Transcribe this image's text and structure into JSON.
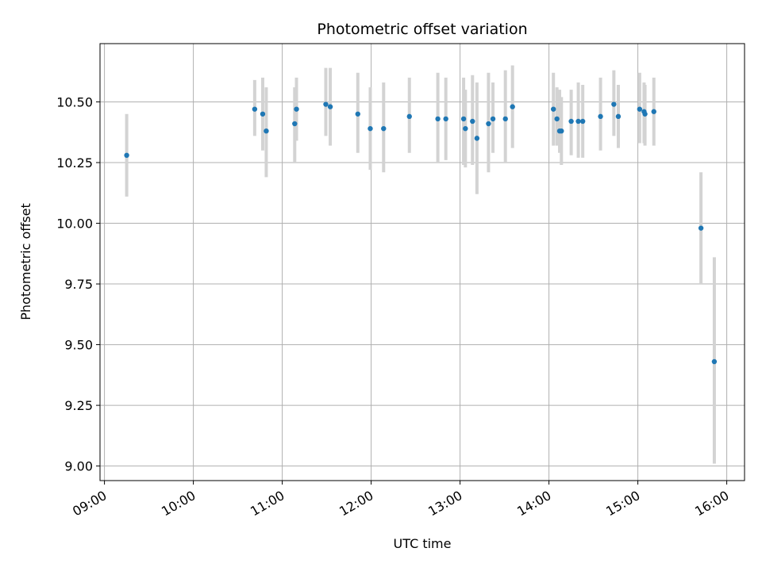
{
  "chart_data": {
    "type": "scatter",
    "title": "Photometric offset variation",
    "xlabel": "UTC time",
    "ylabel": "Photometric offset",
    "xlim": [
      8.95,
      16.2
    ],
    "ylim": [
      8.94,
      10.74
    ],
    "grid": true,
    "x_ticks": [
      {
        "value": 9,
        "label": "09:00"
      },
      {
        "value": 10,
        "label": "10:00"
      },
      {
        "value": 11,
        "label": "11:00"
      },
      {
        "value": 12,
        "label": "12:00"
      },
      {
        "value": 13,
        "label": "13:00"
      },
      {
        "value": 14,
        "label": "14:00"
      },
      {
        "value": 15,
        "label": "15:00"
      },
      {
        "value": 16,
        "label": "16:00"
      }
    ],
    "y_ticks": [
      {
        "value": 9.0,
        "label": "9.00"
      },
      {
        "value": 9.25,
        "label": "9.25"
      },
      {
        "value": 9.5,
        "label": "9.50"
      },
      {
        "value": 9.75,
        "label": "9.75"
      },
      {
        "value": 10.0,
        "label": "10.00"
      },
      {
        "value": 10.25,
        "label": "10.25"
      },
      {
        "value": 10.5,
        "label": "10.50"
      }
    ],
    "series": [
      {
        "name": "offset",
        "color": "#1f77b4",
        "errorbar_color": "#d3d3d3",
        "points": [
          {
            "x": 9.25,
            "y": 10.28,
            "lo": 10.11,
            "hi": 10.45
          },
          {
            "x": 10.69,
            "y": 10.47,
            "lo": 10.36,
            "hi": 10.59
          },
          {
            "x": 10.78,
            "y": 10.45,
            "lo": 10.3,
            "hi": 10.6
          },
          {
            "x": 10.82,
            "y": 10.38,
            "lo": 10.19,
            "hi": 10.56
          },
          {
            "x": 11.14,
            "y": 10.41,
            "lo": 10.25,
            "hi": 10.56
          },
          {
            "x": 11.16,
            "y": 10.47,
            "lo": 10.34,
            "hi": 10.6
          },
          {
            "x": 11.49,
            "y": 10.49,
            "lo": 10.36,
            "hi": 10.64
          },
          {
            "x": 11.54,
            "y": 10.48,
            "lo": 10.32,
            "hi": 10.64
          },
          {
            "x": 11.85,
            "y": 10.45,
            "lo": 10.29,
            "hi": 10.62
          },
          {
            "x": 11.99,
            "y": 10.39,
            "lo": 10.22,
            "hi": 10.56
          },
          {
            "x": 12.14,
            "y": 10.39,
            "lo": 10.21,
            "hi": 10.58
          },
          {
            "x": 12.43,
            "y": 10.44,
            "lo": 10.29,
            "hi": 10.6
          },
          {
            "x": 12.75,
            "y": 10.43,
            "lo": 10.25,
            "hi": 10.62
          },
          {
            "x": 12.84,
            "y": 10.43,
            "lo": 10.26,
            "hi": 10.6
          },
          {
            "x": 13.04,
            "y": 10.43,
            "lo": 10.24,
            "hi": 10.6
          },
          {
            "x": 13.06,
            "y": 10.39,
            "lo": 10.23,
            "hi": 10.55
          },
          {
            "x": 13.14,
            "y": 10.42,
            "lo": 10.24,
            "hi": 10.61
          },
          {
            "x": 13.19,
            "y": 10.35,
            "lo": 10.12,
            "hi": 10.58
          },
          {
            "x": 13.32,
            "y": 10.41,
            "lo": 10.21,
            "hi": 10.62
          },
          {
            "x": 13.37,
            "y": 10.43,
            "lo": 10.29,
            "hi": 10.58
          },
          {
            "x": 13.51,
            "y": 10.43,
            "lo": 10.25,
            "hi": 10.63
          },
          {
            "x": 13.59,
            "y": 10.48,
            "lo": 10.31,
            "hi": 10.65
          },
          {
            "x": 14.05,
            "y": 10.47,
            "lo": 10.32,
            "hi": 10.62
          },
          {
            "x": 14.09,
            "y": 10.43,
            "lo": 10.32,
            "hi": 10.56
          },
          {
            "x": 14.12,
            "y": 10.38,
            "lo": 10.29,
            "hi": 10.55
          },
          {
            "x": 14.14,
            "y": 10.38,
            "lo": 10.24,
            "hi": 10.52
          },
          {
            "x": 14.25,
            "y": 10.42,
            "lo": 10.28,
            "hi": 10.55
          },
          {
            "x": 14.33,
            "y": 10.42,
            "lo": 10.27,
            "hi": 10.58
          },
          {
            "x": 14.38,
            "y": 10.42,
            "lo": 10.27,
            "hi": 10.57
          },
          {
            "x": 14.58,
            "y": 10.44,
            "lo": 10.3,
            "hi": 10.6
          },
          {
            "x": 14.73,
            "y": 10.49,
            "lo": 10.36,
            "hi": 10.63
          },
          {
            "x": 14.78,
            "y": 10.44,
            "lo": 10.31,
            "hi": 10.57
          },
          {
            "x": 15.02,
            "y": 10.47,
            "lo": 10.33,
            "hi": 10.62
          },
          {
            "x": 15.07,
            "y": 10.46,
            "lo": 10.33,
            "hi": 10.58
          },
          {
            "x": 15.08,
            "y": 10.45,
            "lo": 10.32,
            "hi": 10.57
          },
          {
            "x": 15.18,
            "y": 10.46,
            "lo": 10.32,
            "hi": 10.6
          },
          {
            "x": 15.71,
            "y": 9.98,
            "lo": 9.75,
            "hi": 10.21
          },
          {
            "x": 15.86,
            "y": 9.43,
            "lo": 9.01,
            "hi": 9.86
          }
        ]
      }
    ]
  }
}
